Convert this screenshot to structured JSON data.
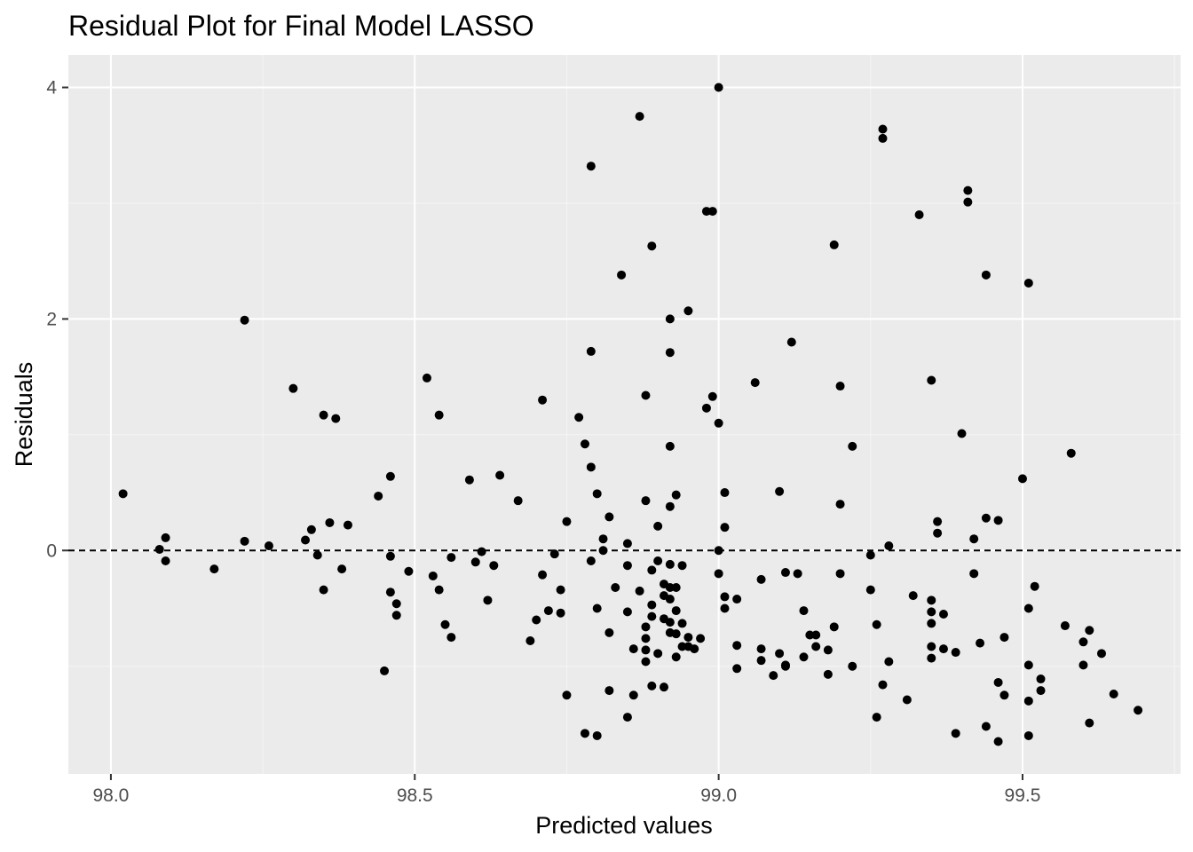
{
  "chart_data": {
    "type": "scatter",
    "title": "Residual Plot for Final Model LASSO",
    "xlabel": "Predicted values",
    "ylabel": "Residuals",
    "xlim": [
      97.93,
      99.76
    ],
    "ylim": [
      -1.93,
      4.28
    ],
    "x_ticks": [
      98.0,
      98.5,
      99.0,
      99.5
    ],
    "x_tick_labels": [
      "98.0",
      "98.5",
      "99.0",
      "99.5"
    ],
    "y_ticks": [
      0,
      2,
      4
    ],
    "y_tick_labels": [
      "0",
      "2",
      "4"
    ],
    "grid": true,
    "legend": "none",
    "reference_line": {
      "y": 0,
      "style": "dashed"
    },
    "colors": {
      "panel": "#ebebeb",
      "grid_major": "#ffffff",
      "grid_minor": "#f5f5f5",
      "point": "#000000",
      "tick_label": "#4d4d4d"
    },
    "points": [
      [
        98.02,
        0.49
      ],
      [
        98.08,
        0.01
      ],
      [
        98.09,
        0.11
      ],
      [
        98.09,
        -0.09
      ],
      [
        98.17,
        -0.16
      ],
      [
        98.22,
        1.99
      ],
      [
        98.22,
        0.08
      ],
      [
        98.26,
        0.04
      ],
      [
        98.3,
        1.4
      ],
      [
        98.32,
        0.09
      ],
      [
        98.33,
        0.18
      ],
      [
        98.34,
        -0.04
      ],
      [
        98.35,
        1.17
      ],
      [
        98.35,
        -0.34
      ],
      [
        98.36,
        0.24
      ],
      [
        98.37,
        1.14
      ],
      [
        98.38,
        -0.16
      ],
      [
        98.39,
        0.22
      ],
      [
        98.44,
        0.47
      ],
      [
        98.45,
        -1.04
      ],
      [
        98.46,
        0.64
      ],
      [
        98.46,
        -0.05
      ],
      [
        98.46,
        -0.36
      ],
      [
        98.47,
        -0.46
      ],
      [
        98.47,
        -0.56
      ],
      [
        98.49,
        -0.18
      ],
      [
        98.52,
        1.49
      ],
      [
        98.53,
        -0.22
      ],
      [
        98.54,
        1.17
      ],
      [
        98.54,
        -0.34
      ],
      [
        98.55,
        -0.64
      ],
      [
        98.56,
        -0.75
      ],
      [
        98.56,
        -0.06
      ],
      [
        98.59,
        0.61
      ],
      [
        98.6,
        -0.1
      ],
      [
        98.61,
        -0.01
      ],
      [
        98.62,
        -0.43
      ],
      [
        98.63,
        -0.13
      ],
      [
        98.64,
        0.65
      ],
      [
        98.67,
        0.43
      ],
      [
        98.69,
        -0.78
      ],
      [
        98.7,
        -0.6
      ],
      [
        98.71,
        1.3
      ],
      [
        98.71,
        -0.21
      ],
      [
        98.72,
        -0.52
      ],
      [
        98.73,
        -0.03
      ],
      [
        98.74,
        -0.54
      ],
      [
        98.74,
        -0.34
      ],
      [
        98.75,
        0.25
      ],
      [
        98.75,
        -1.25
      ],
      [
        98.77,
        1.15
      ],
      [
        98.78,
        -1.58
      ],
      [
        98.78,
        0.92
      ],
      [
        98.79,
        -0.09
      ],
      [
        98.79,
        3.32
      ],
      [
        98.79,
        1.72
      ],
      [
        98.79,
        0.72
      ],
      [
        98.8,
        -1.6
      ],
      [
        98.8,
        -0.5
      ],
      [
        98.8,
        0.49
      ],
      [
        98.81,
        0.1
      ],
      [
        98.81,
        0.0
      ],
      [
        98.82,
        0.29
      ],
      [
        98.82,
        -0.71
      ],
      [
        98.82,
        -1.21
      ],
      [
        98.83,
        -0.32
      ],
      [
        98.84,
        2.38
      ],
      [
        98.85,
        0.06
      ],
      [
        98.85,
        -0.53
      ],
      [
        98.85,
        -1.44
      ],
      [
        98.85,
        -0.13
      ],
      [
        98.86,
        -0.85
      ],
      [
        98.86,
        -1.25
      ],
      [
        98.87,
        -0.35
      ],
      [
        98.87,
        3.75
      ],
      [
        98.88,
        -0.66
      ],
      [
        98.88,
        -0.86
      ],
      [
        98.88,
        -0.96
      ],
      [
        98.88,
        -0.76
      ],
      [
        98.88,
        1.34
      ],
      [
        98.88,
        0.43
      ],
      [
        98.89,
        -0.17
      ],
      [
        98.89,
        -0.47
      ],
      [
        98.89,
        -0.57
      ],
      [
        98.89,
        2.63
      ],
      [
        98.89,
        -1.17
      ],
      [
        98.9,
        -0.89
      ],
      [
        98.9,
        0.21
      ],
      [
        98.9,
        -0.09
      ],
      [
        98.91,
        -0.29
      ],
      [
        98.91,
        -0.39
      ],
      [
        98.91,
        -0.59
      ],
      [
        98.91,
        -1.18
      ],
      [
        98.92,
        2.0
      ],
      [
        98.92,
        1.71
      ],
      [
        98.92,
        0.9
      ],
      [
        98.92,
        0.38
      ],
      [
        98.92,
        -0.12
      ],
      [
        98.92,
        -0.32
      ],
      [
        98.92,
        -0.42
      ],
      [
        98.92,
        -0.62
      ],
      [
        98.92,
        -0.71
      ],
      [
        98.93,
        0.48
      ],
      [
        98.93,
        -0.32
      ],
      [
        98.93,
        -0.52
      ],
      [
        98.93,
        -0.72
      ],
      [
        98.93,
        -0.92
      ],
      [
        98.94,
        -0.83
      ],
      [
        98.94,
        -0.13
      ],
      [
        98.94,
        -0.63
      ],
      [
        98.95,
        2.07
      ],
      [
        98.95,
        -0.75
      ],
      [
        98.95,
        -0.83
      ],
      [
        98.96,
        -0.85
      ],
      [
        98.97,
        -0.76
      ],
      [
        98.98,
        2.93
      ],
      [
        98.98,
        1.23
      ],
      [
        98.99,
        1.33
      ],
      [
        98.99,
        2.93
      ],
      [
        99.0,
        4.0
      ],
      [
        99.0,
        1.1
      ],
      [
        99.0,
        0.0
      ],
      [
        99.0,
        -0.2
      ],
      [
        99.01,
        0.5
      ],
      [
        99.01,
        0.2
      ],
      [
        99.01,
        -0.4
      ],
      [
        99.01,
        -0.5
      ],
      [
        99.03,
        -0.42
      ],
      [
        99.03,
        -1.02
      ],
      [
        99.03,
        -0.82
      ],
      [
        99.06,
        1.45
      ],
      [
        99.07,
        -0.25
      ],
      [
        99.07,
        -0.85
      ],
      [
        99.07,
        -0.95
      ],
      [
        99.09,
        -1.08
      ],
      [
        99.1,
        0.51
      ],
      [
        99.1,
        -0.89
      ],
      [
        99.11,
        -0.19
      ],
      [
        99.11,
        -0.99
      ],
      [
        99.11,
        -1.0
      ],
      [
        99.12,
        1.8
      ],
      [
        99.13,
        -0.2
      ],
      [
        99.14,
        -0.52
      ],
      [
        99.14,
        -0.92
      ],
      [
        99.15,
        -0.73
      ],
      [
        99.16,
        -0.73
      ],
      [
        99.16,
        -0.83
      ],
      [
        99.18,
        -1.07
      ],
      [
        99.18,
        -0.86
      ],
      [
        99.19,
        -0.66
      ],
      [
        99.19,
        2.64
      ],
      [
        99.2,
        1.42
      ],
      [
        99.2,
        0.4
      ],
      [
        99.2,
        -0.2
      ],
      [
        99.22,
        0.9
      ],
      [
        99.22,
        -1.0
      ],
      [
        99.25,
        -0.34
      ],
      [
        99.25,
        -0.04
      ],
      [
        99.26,
        -0.64
      ],
      [
        99.26,
        -1.44
      ],
      [
        99.27,
        3.64
      ],
      [
        99.27,
        3.56
      ],
      [
        99.27,
        -1.16
      ],
      [
        99.28,
        0.04
      ],
      [
        99.28,
        -0.96
      ],
      [
        99.31,
        -1.29
      ],
      [
        99.32,
        -0.39
      ],
      [
        99.33,
        2.9
      ],
      [
        99.35,
        1.47
      ],
      [
        99.35,
        -0.43
      ],
      [
        99.35,
        -0.53
      ],
      [
        99.35,
        -0.63
      ],
      [
        99.35,
        -0.83
      ],
      [
        99.35,
        -0.93
      ],
      [
        99.36,
        0.25
      ],
      [
        99.36,
        0.15
      ],
      [
        99.37,
        -0.85
      ],
      [
        99.37,
        -0.55
      ],
      [
        99.39,
        -0.88
      ],
      [
        99.39,
        -1.58
      ],
      [
        99.4,
        1.01
      ],
      [
        99.41,
        3.11
      ],
      [
        99.41,
        3.01
      ],
      [
        99.42,
        0.1
      ],
      [
        99.42,
        -0.2
      ],
      [
        99.43,
        -0.8
      ],
      [
        99.44,
        0.28
      ],
      [
        99.44,
        -1.52
      ],
      [
        99.44,
        2.38
      ],
      [
        99.46,
        0.26
      ],
      [
        99.46,
        -1.14
      ],
      [
        99.46,
        -1.65
      ],
      [
        99.47,
        -1.25
      ],
      [
        99.47,
        -0.75
      ],
      [
        99.5,
        0.62
      ],
      [
        99.51,
        -0.99
      ],
      [
        99.51,
        -0.5
      ],
      [
        99.51,
        -1.3
      ],
      [
        99.51,
        -1.6
      ],
      [
        99.51,
        2.31
      ],
      [
        99.52,
        -0.31
      ],
      [
        99.53,
        -1.11
      ],
      [
        99.53,
        -1.21
      ],
      [
        99.57,
        -0.65
      ],
      [
        99.58,
        0.84
      ],
      [
        99.6,
        -0.79
      ],
      [
        99.6,
        -0.99
      ],
      [
        99.61,
        -0.69
      ],
      [
        99.61,
        -1.49
      ],
      [
        99.63,
        -0.89
      ],
      [
        99.65,
        -1.24
      ],
      [
        99.69,
        -1.38
      ]
    ]
  }
}
